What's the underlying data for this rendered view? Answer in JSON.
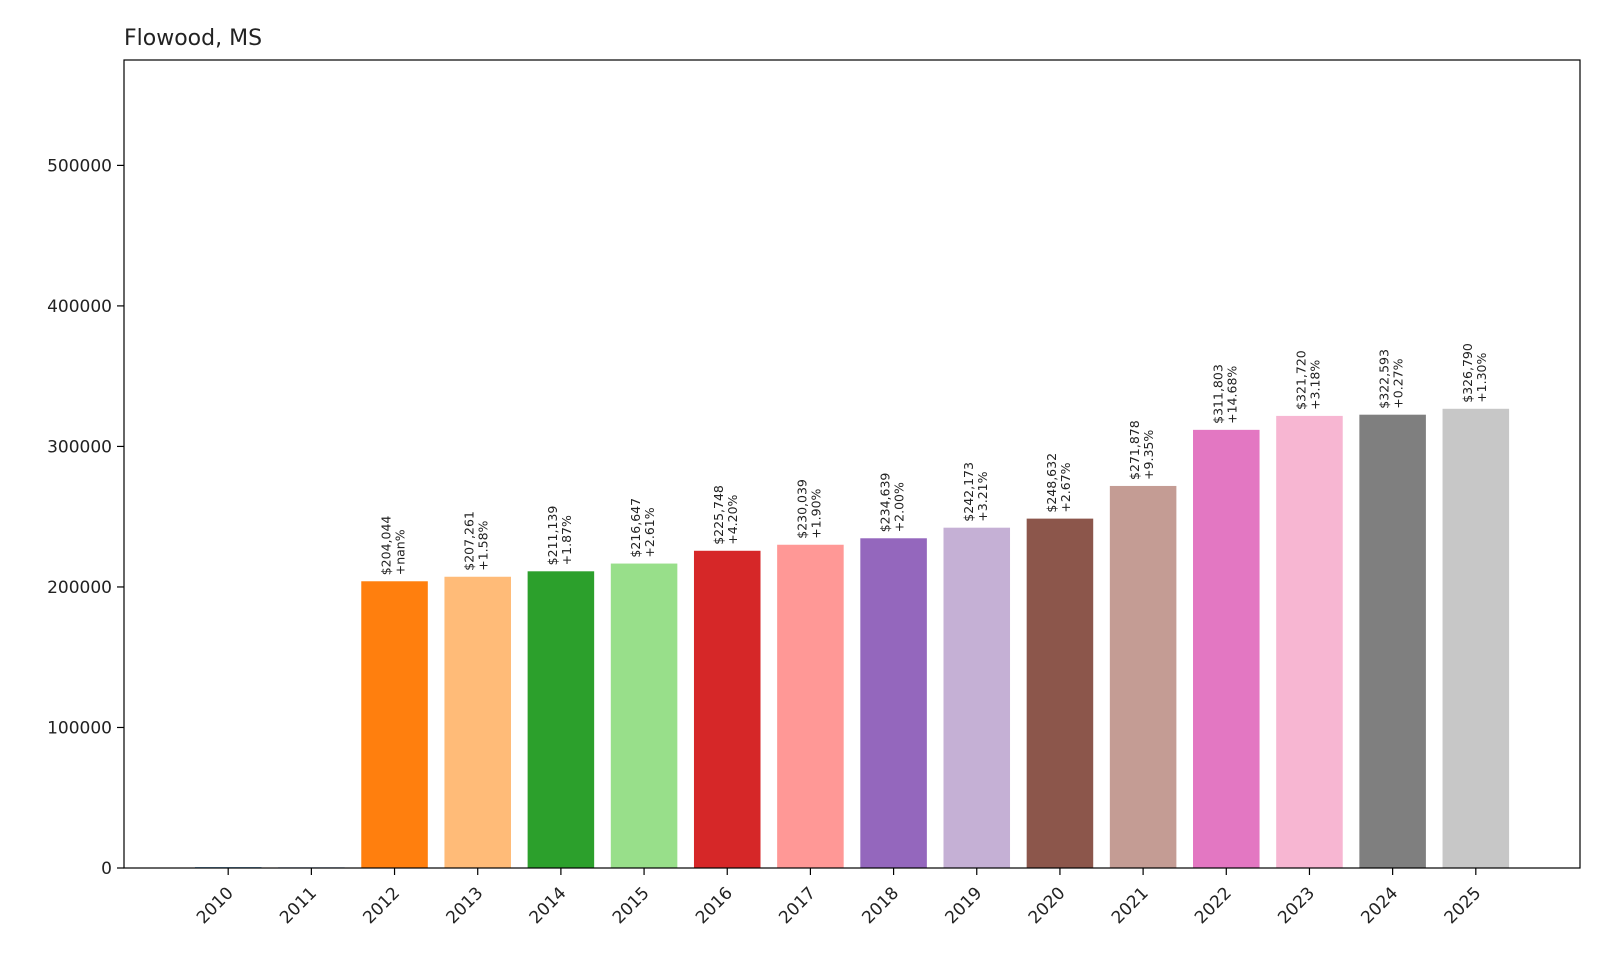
{
  "chart_data": {
    "type": "bar",
    "title": "Flowood, MS",
    "xlabel": "",
    "ylabel": "",
    "ylim": [
      0,
      575000
    ],
    "yticks": [
      0,
      100000,
      200000,
      300000,
      400000,
      500000
    ],
    "ytick_labels": [
      "0",
      "100000",
      "200000",
      "300000",
      "400000",
      "500000"
    ],
    "grid": false,
    "categories": [
      "2010",
      "2011",
      "2012",
      "2013",
      "2014",
      "2015",
      "2016",
      "2017",
      "2018",
      "2019",
      "2020",
      "2021",
      "2022",
      "2023",
      "2024",
      "2025"
    ],
    "values": [
      0,
      0,
      204044,
      207261,
      211139,
      216647,
      225748,
      230039,
      234639,
      242173,
      248632,
      271878,
      311803,
      321720,
      322593,
      326790
    ],
    "colors": [
      "#1f77b4",
      "#aec7e8",
      "#ff7f0e",
      "#ffbb78",
      "#2ca02c",
      "#98df8a",
      "#d62728",
      "#ff9896",
      "#9467bd",
      "#c5b0d5",
      "#8c564b",
      "#c49c94",
      "#e377c2",
      "#f7b6d2",
      "#7f7f7f",
      "#c7c7c7"
    ],
    "value_labels": [
      "",
      "",
      "$204,044",
      "$207,261",
      "$211,139",
      "$216,647",
      "$225,748",
      "$230,039",
      "$234,639",
      "$242,173",
      "$248,632",
      "$271,878",
      "$311,803",
      "$321,720",
      "$322,593",
      "$326,790"
    ],
    "change_labels": [
      "",
      "",
      "+nan%",
      "+1.58%",
      "+1.87%",
      "+2.61%",
      "+4.20%",
      "+1.90%",
      "+2.00%",
      "+3.21%",
      "+2.67%",
      "+9.35%",
      "+14.68%",
      "+3.18%",
      "+0.27%",
      "+1.30%"
    ]
  }
}
